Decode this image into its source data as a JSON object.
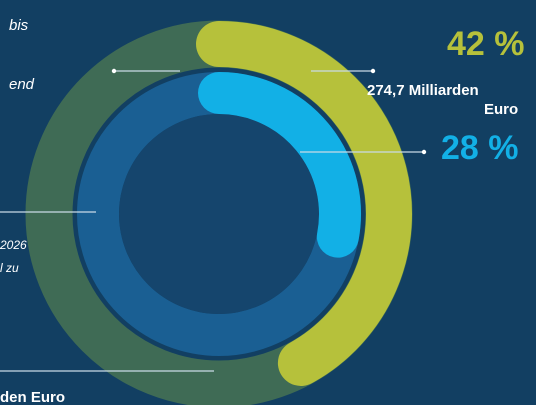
{
  "colors": {
    "background": "#123f62",
    "outer_track": "#3f6b55",
    "inner_track": "#1a5f93",
    "center": "#15456d",
    "green": "#b6c13b",
    "cyan": "#12b0e6",
    "line": "#c9dbe7",
    "text_white": "#ffffff"
  },
  "chart_data": {
    "type": "radial-bar",
    "series": [
      {
        "value_label": "42 %",
        "value_percent": 42,
        "color": "green"
      },
      {
        "value_label": "28 %",
        "value_percent": 28,
        "color": "cyan"
      }
    ],
    "annotations": [
      "274,7 Milliarden",
      "Euro",
      "bis",
      "end",
      "2026",
      "l zu",
      "den Euro"
    ]
  }
}
